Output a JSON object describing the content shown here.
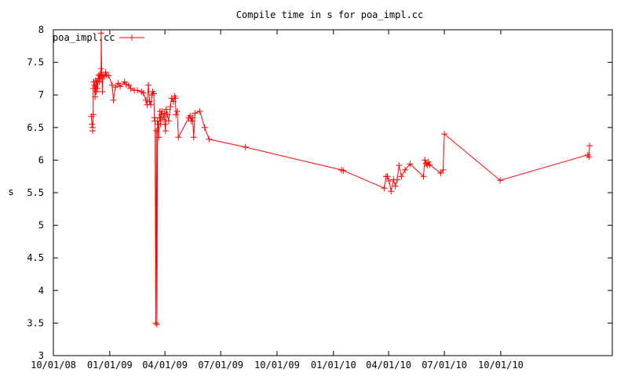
{
  "chart_data": {
    "type": "line",
    "title": "Compile time in s for poa_impl.cc",
    "xlabel": "",
    "ylabel": "s",
    "xlim": [
      "2008-10-01",
      "2011-04-01"
    ],
    "ylim": [
      3,
      8
    ],
    "x_ticks": [
      {
        "date": "2008-10-01",
        "label": "10/01/08"
      },
      {
        "date": "2009-01-01",
        "label": "01/01/09"
      },
      {
        "date": "2009-04-01",
        "label": "04/01/09"
      },
      {
        "date": "2009-07-01",
        "label": "07/01/09"
      },
      {
        "date": "2009-10-01",
        "label": "10/01/09"
      },
      {
        "date": "2010-01-01",
        "label": "01/01/10"
      },
      {
        "date": "2010-04-01",
        "label": "04/01/10"
      },
      {
        "date": "2010-07-01",
        "label": "07/01/10"
      },
      {
        "date": "2010-10-01",
        "label": "10/01/10"
      }
    ],
    "y_ticks": [
      "3",
      "3.5",
      "4",
      "4.5",
      "5",
      "5.5",
      "6",
      "6.5",
      "7",
      "7.5",
      "8"
    ],
    "grid": false,
    "legend": "top-left",
    "series": [
      {
        "name": "poa_impl.cc",
        "color": "#ff0000",
        "marker": "plus",
        "points": [
          [
            "2008-12-02",
            6.67
          ],
          [
            "2008-12-03",
            6.55
          ],
          [
            "2008-12-04",
            6.5
          ],
          [
            "2008-12-04",
            6.45
          ],
          [
            "2008-12-05",
            6.7
          ],
          [
            "2008-12-05",
            7.1
          ],
          [
            "2008-12-06",
            7.2
          ],
          [
            "2008-12-07",
            7.15
          ],
          [
            "2008-12-08",
            6.97
          ],
          [
            "2008-12-09",
            7.22
          ],
          [
            "2008-12-10",
            7.05
          ],
          [
            "2008-12-11",
            7.2
          ],
          [
            "2008-12-12",
            7.1
          ],
          [
            "2008-12-13",
            7.25
          ],
          [
            "2008-12-14",
            7.3
          ],
          [
            "2008-12-15",
            7.2
          ],
          [
            "2008-12-16",
            7.32
          ],
          [
            "2008-12-17",
            7.25
          ],
          [
            "2008-12-18",
            7.4
          ],
          [
            "2008-12-18",
            7.95
          ],
          [
            "2008-12-19",
            7.3
          ],
          [
            "2008-12-20",
            7.05
          ],
          [
            "2008-12-21",
            7.3
          ],
          [
            "2008-12-23",
            7.28
          ],
          [
            "2008-12-25",
            7.35
          ],
          [
            "2008-12-27",
            7.3
          ],
          [
            "2008-12-30",
            7.3
          ],
          [
            "2009-01-05",
            7.15
          ],
          [
            "2009-01-07",
            6.92
          ],
          [
            "2009-01-10",
            7.12
          ],
          [
            "2009-01-15",
            7.18
          ],
          [
            "2009-01-18",
            7.13
          ],
          [
            "2009-01-25",
            7.2
          ],
          [
            "2009-01-28",
            7.16
          ],
          [
            "2009-02-01",
            7.15
          ],
          [
            "2009-02-04",
            7.1
          ],
          [
            "2009-02-10",
            7.07
          ],
          [
            "2009-02-15",
            7.07
          ],
          [
            "2009-02-22",
            7.05
          ],
          [
            "2009-02-25",
            7.03
          ],
          [
            "2009-03-01",
            6.92
          ],
          [
            "2009-03-03",
            6.85
          ],
          [
            "2009-03-05",
            7.15
          ],
          [
            "2009-03-07",
            6.9
          ],
          [
            "2009-03-09",
            6.85
          ],
          [
            "2009-03-11",
            7.0
          ],
          [
            "2009-03-12",
            7.05
          ],
          [
            "2009-03-14",
            7.02
          ],
          [
            "2009-03-15",
            6.65
          ],
          [
            "2009-03-16",
            6.6
          ],
          [
            "2009-03-17",
            3.5
          ],
          [
            "2009-03-18",
            6.45
          ],
          [
            "2009-03-19",
            3.48
          ],
          [
            "2009-03-20",
            6.6
          ],
          [
            "2009-03-21",
            6.55
          ],
          [
            "2009-03-22",
            6.35
          ],
          [
            "2009-03-23",
            6.65
          ],
          [
            "2009-03-24",
            6.75
          ],
          [
            "2009-03-25",
            6.55
          ],
          [
            "2009-03-26",
            6.7
          ],
          [
            "2009-03-27",
            6.75
          ],
          [
            "2009-03-29",
            6.62
          ],
          [
            "2009-03-31",
            6.72
          ],
          [
            "2009-04-01",
            6.55
          ],
          [
            "2009-04-02",
            6.45
          ],
          [
            "2009-04-03",
            6.78
          ],
          [
            "2009-04-05",
            6.7
          ],
          [
            "2009-04-07",
            6.6
          ],
          [
            "2009-04-10",
            6.82
          ],
          [
            "2009-04-12",
            6.95
          ],
          [
            "2009-04-15",
            6.9
          ],
          [
            "2009-04-17",
            6.98
          ],
          [
            "2009-04-18",
            6.95
          ],
          [
            "2009-04-19",
            6.7
          ],
          [
            "2009-04-21",
            6.75
          ],
          [
            "2009-04-23",
            6.35
          ],
          [
            "2009-05-10",
            6.65
          ],
          [
            "2009-05-12",
            6.68
          ],
          [
            "2009-05-14",
            6.6
          ],
          [
            "2009-05-16",
            6.65
          ],
          [
            "2009-05-18",
            6.35
          ],
          [
            "2009-05-20",
            6.72
          ],
          [
            "2009-05-28",
            6.75
          ],
          [
            "2009-06-05",
            6.5
          ],
          [
            "2009-06-12",
            6.32
          ],
          [
            "2009-08-10",
            6.2
          ],
          [
            "2010-01-14",
            5.85
          ],
          [
            "2010-01-17",
            5.84
          ],
          [
            "2010-03-25",
            5.57
          ],
          [
            "2010-03-28",
            5.75
          ],
          [
            "2010-03-30",
            5.75
          ],
          [
            "2010-04-02",
            5.68
          ],
          [
            "2010-04-05",
            5.52
          ],
          [
            "2010-04-09",
            5.7
          ],
          [
            "2010-04-12",
            5.6
          ],
          [
            "2010-04-15",
            5.7
          ],
          [
            "2010-04-18",
            5.92
          ],
          [
            "2010-04-22",
            5.75
          ],
          [
            "2010-04-28",
            5.85
          ],
          [
            "2010-05-06",
            5.94
          ],
          [
            "2010-05-28",
            5.75
          ],
          [
            "2010-05-30",
            6.0
          ],
          [
            "2010-06-01",
            5.95
          ],
          [
            "2010-06-03",
            5.92
          ],
          [
            "2010-06-05",
            5.97
          ],
          [
            "2010-06-07",
            5.93
          ],
          [
            "2010-06-25",
            5.8
          ],
          [
            "2010-06-29",
            5.85
          ],
          [
            "2010-07-01",
            6.4
          ],
          [
            "2010-09-30",
            5.69
          ],
          [
            "2011-02-20",
            6.08
          ],
          [
            "2011-02-22",
            6.05
          ],
          [
            "2011-02-23",
            6.22
          ]
        ]
      }
    ]
  }
}
